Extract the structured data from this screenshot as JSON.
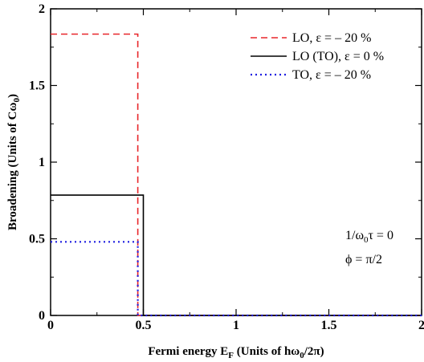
{
  "chart_data": {
    "type": "line",
    "xlabel": "Fermi energy E_F (Units of hω_0/2π)",
    "ylabel": "Broadening (Units of Cω_0)",
    "xlim": [
      0,
      2
    ],
    "ylim": [
      0,
      2
    ],
    "x_ticks": [
      {
        "value": 0,
        "label": "0"
      },
      {
        "value": 0.5,
        "label": "0.5"
      },
      {
        "value": 1,
        "label": "1"
      },
      {
        "value": 1.5,
        "label": "1.5"
      },
      {
        "value": 2,
        "label": "2"
      }
    ],
    "y_ticks": [
      {
        "value": 0,
        "label": "0"
      },
      {
        "value": 0.5,
        "label": "0.5"
      },
      {
        "value": 1,
        "label": "1"
      },
      {
        "value": 1.5,
        "label": "1.5"
      },
      {
        "value": 2,
        "label": "2"
      }
    ],
    "grid": false,
    "legend_position": "top-right",
    "series": [
      {
        "name": "LO, ε = – 20 %",
        "color": "#e8262a",
        "dash": "dashed",
        "x": [
          0,
          0.47,
          0.47,
          2
        ],
        "y": [
          1.835,
          1.835,
          0,
          0
        ]
      },
      {
        "name": "LO (TO), ε = 0 %",
        "color": "#000000",
        "dash": "solid",
        "x": [
          0,
          0.5,
          0.5,
          2
        ],
        "y": [
          0.785,
          0.785,
          0,
          0
        ]
      },
      {
        "name": "TO, ε = – 20 %",
        "color": "#1f1fe0",
        "dash": "dotted",
        "x": [
          0,
          0.47,
          0.47,
          2
        ],
        "y": [
          0.48,
          0.48,
          0,
          0
        ]
      }
    ],
    "annotations": [
      "1/ω_0τ = 0",
      "ϕ = π/2"
    ]
  }
}
